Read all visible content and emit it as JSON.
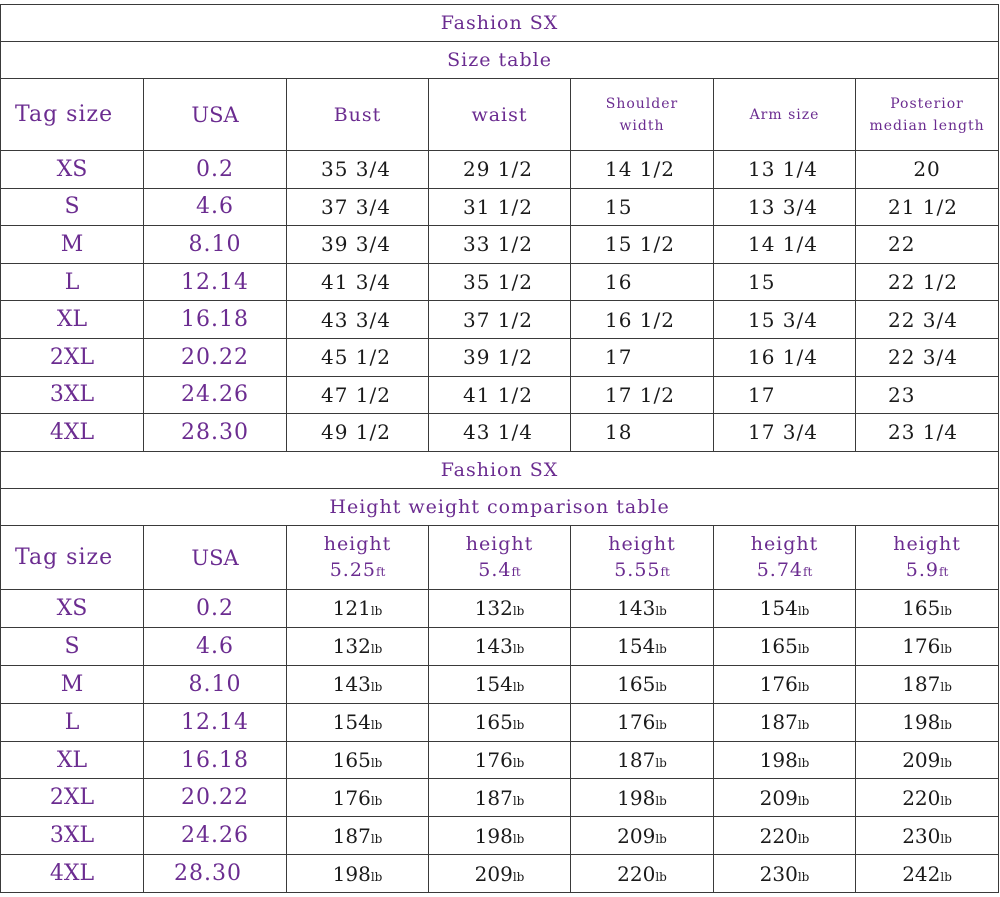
{
  "size_table": {
    "brand": "Fashion SX",
    "title": "Size table",
    "headers": {
      "tag": "Tag size",
      "usa": "USA",
      "bust": "Bust",
      "waist": "waist",
      "shoulder_1": "Shoulder",
      "shoulder_2": "width",
      "arm": "Arm size",
      "posterior_1": "Posterior",
      "posterior_2": "median length"
    },
    "rows": [
      {
        "tag": "XS",
        "usa": "0.2",
        "bust": "35 3/4",
        "waist": "29 1/2",
        "shoulder": "14 1/2",
        "arm": "13 1/4",
        "posterior": "20"
      },
      {
        "tag": "S",
        "usa": "4.6",
        "bust": "37 3/4",
        "waist": "31 1/2",
        "shoulder": "15",
        "arm": "13 3/4",
        "posterior": "21 1/2"
      },
      {
        "tag": "M",
        "usa": "8.10",
        "bust": "39 3/4",
        "waist": "33 1/2",
        "shoulder": "15 1/2",
        "arm": "14 1/4",
        "posterior": "22"
      },
      {
        "tag": "L",
        "usa": "12.14",
        "bust": "41 3/4",
        "waist": "35 1/2",
        "shoulder": "16",
        "arm": "15",
        "posterior": "22 1/2"
      },
      {
        "tag": "XL",
        "usa": "16.18",
        "bust": "43 3/4",
        "waist": "37 1/2",
        "shoulder": "16 1/2",
        "arm": "15 3/4",
        "posterior": "22 3/4"
      },
      {
        "tag": "2XL",
        "usa": "20.22",
        "bust": "45 1/2",
        "waist": "39 1/2",
        "shoulder": "17",
        "arm": "16 1/4",
        "posterior": "22 3/4"
      },
      {
        "tag": "3XL",
        "usa": "24.26",
        "bust": "47 1/2",
        "waist": "41 1/2",
        "shoulder": "17 1/2",
        "arm": "17",
        "posterior": "23"
      },
      {
        "tag": "4XL",
        "usa": "28.30",
        "bust": "49 1/2",
        "waist": "43 1/4",
        "shoulder": "18",
        "arm": "17 3/4",
        "posterior": "23 1/4"
      }
    ]
  },
  "height_table": {
    "brand": "Fashion SX",
    "title": "Height weight comparison table",
    "headers": {
      "tag": "Tag size",
      "usa": "USA",
      "height_word": "height",
      "heights": [
        {
          "value": "5.25",
          "unit": "ft"
        },
        {
          "value": "5.4",
          "unit": "ft"
        },
        {
          "value": "5.55",
          "unit": "ft"
        },
        {
          "value": "5.74",
          "unit": "ft"
        },
        {
          "value": "5.9",
          "unit": "ft"
        }
      ]
    },
    "weight_unit": "lb",
    "rows": [
      {
        "tag": "XS",
        "usa": "0.2",
        "weights": [
          "121",
          "132",
          "143",
          "154",
          "165"
        ]
      },
      {
        "tag": "S",
        "usa": "4.6",
        "weights": [
          "132",
          "143",
          "154",
          "165",
          "176"
        ]
      },
      {
        "tag": "M",
        "usa": "8.10",
        "weights": [
          "143",
          "154",
          "165",
          "176",
          "187"
        ]
      },
      {
        "tag": "L",
        "usa": "12.14",
        "weights": [
          "154",
          "165",
          "176",
          "187",
          "198"
        ]
      },
      {
        "tag": "XL",
        "usa": "16.18",
        "weights": [
          "165",
          "176",
          "187",
          "198",
          "209"
        ]
      },
      {
        "tag": "2XL",
        "usa": "20.22",
        "weights": [
          "176",
          "187",
          "198",
          "209",
          "220"
        ]
      },
      {
        "tag": "3XL",
        "usa": "24.26",
        "weights": [
          "187",
          "198",
          "209",
          "220",
          "230"
        ]
      },
      {
        "tag": "4XL",
        "usa": "28.30",
        "weights": [
          "198",
          "209",
          "220",
          "230",
          "242"
        ]
      }
    ]
  },
  "colors": {
    "purple_text": "#6b2c90",
    "value_text": "#1a1a1a",
    "border": "#3a3a3a",
    "background": "#ffffff"
  }
}
